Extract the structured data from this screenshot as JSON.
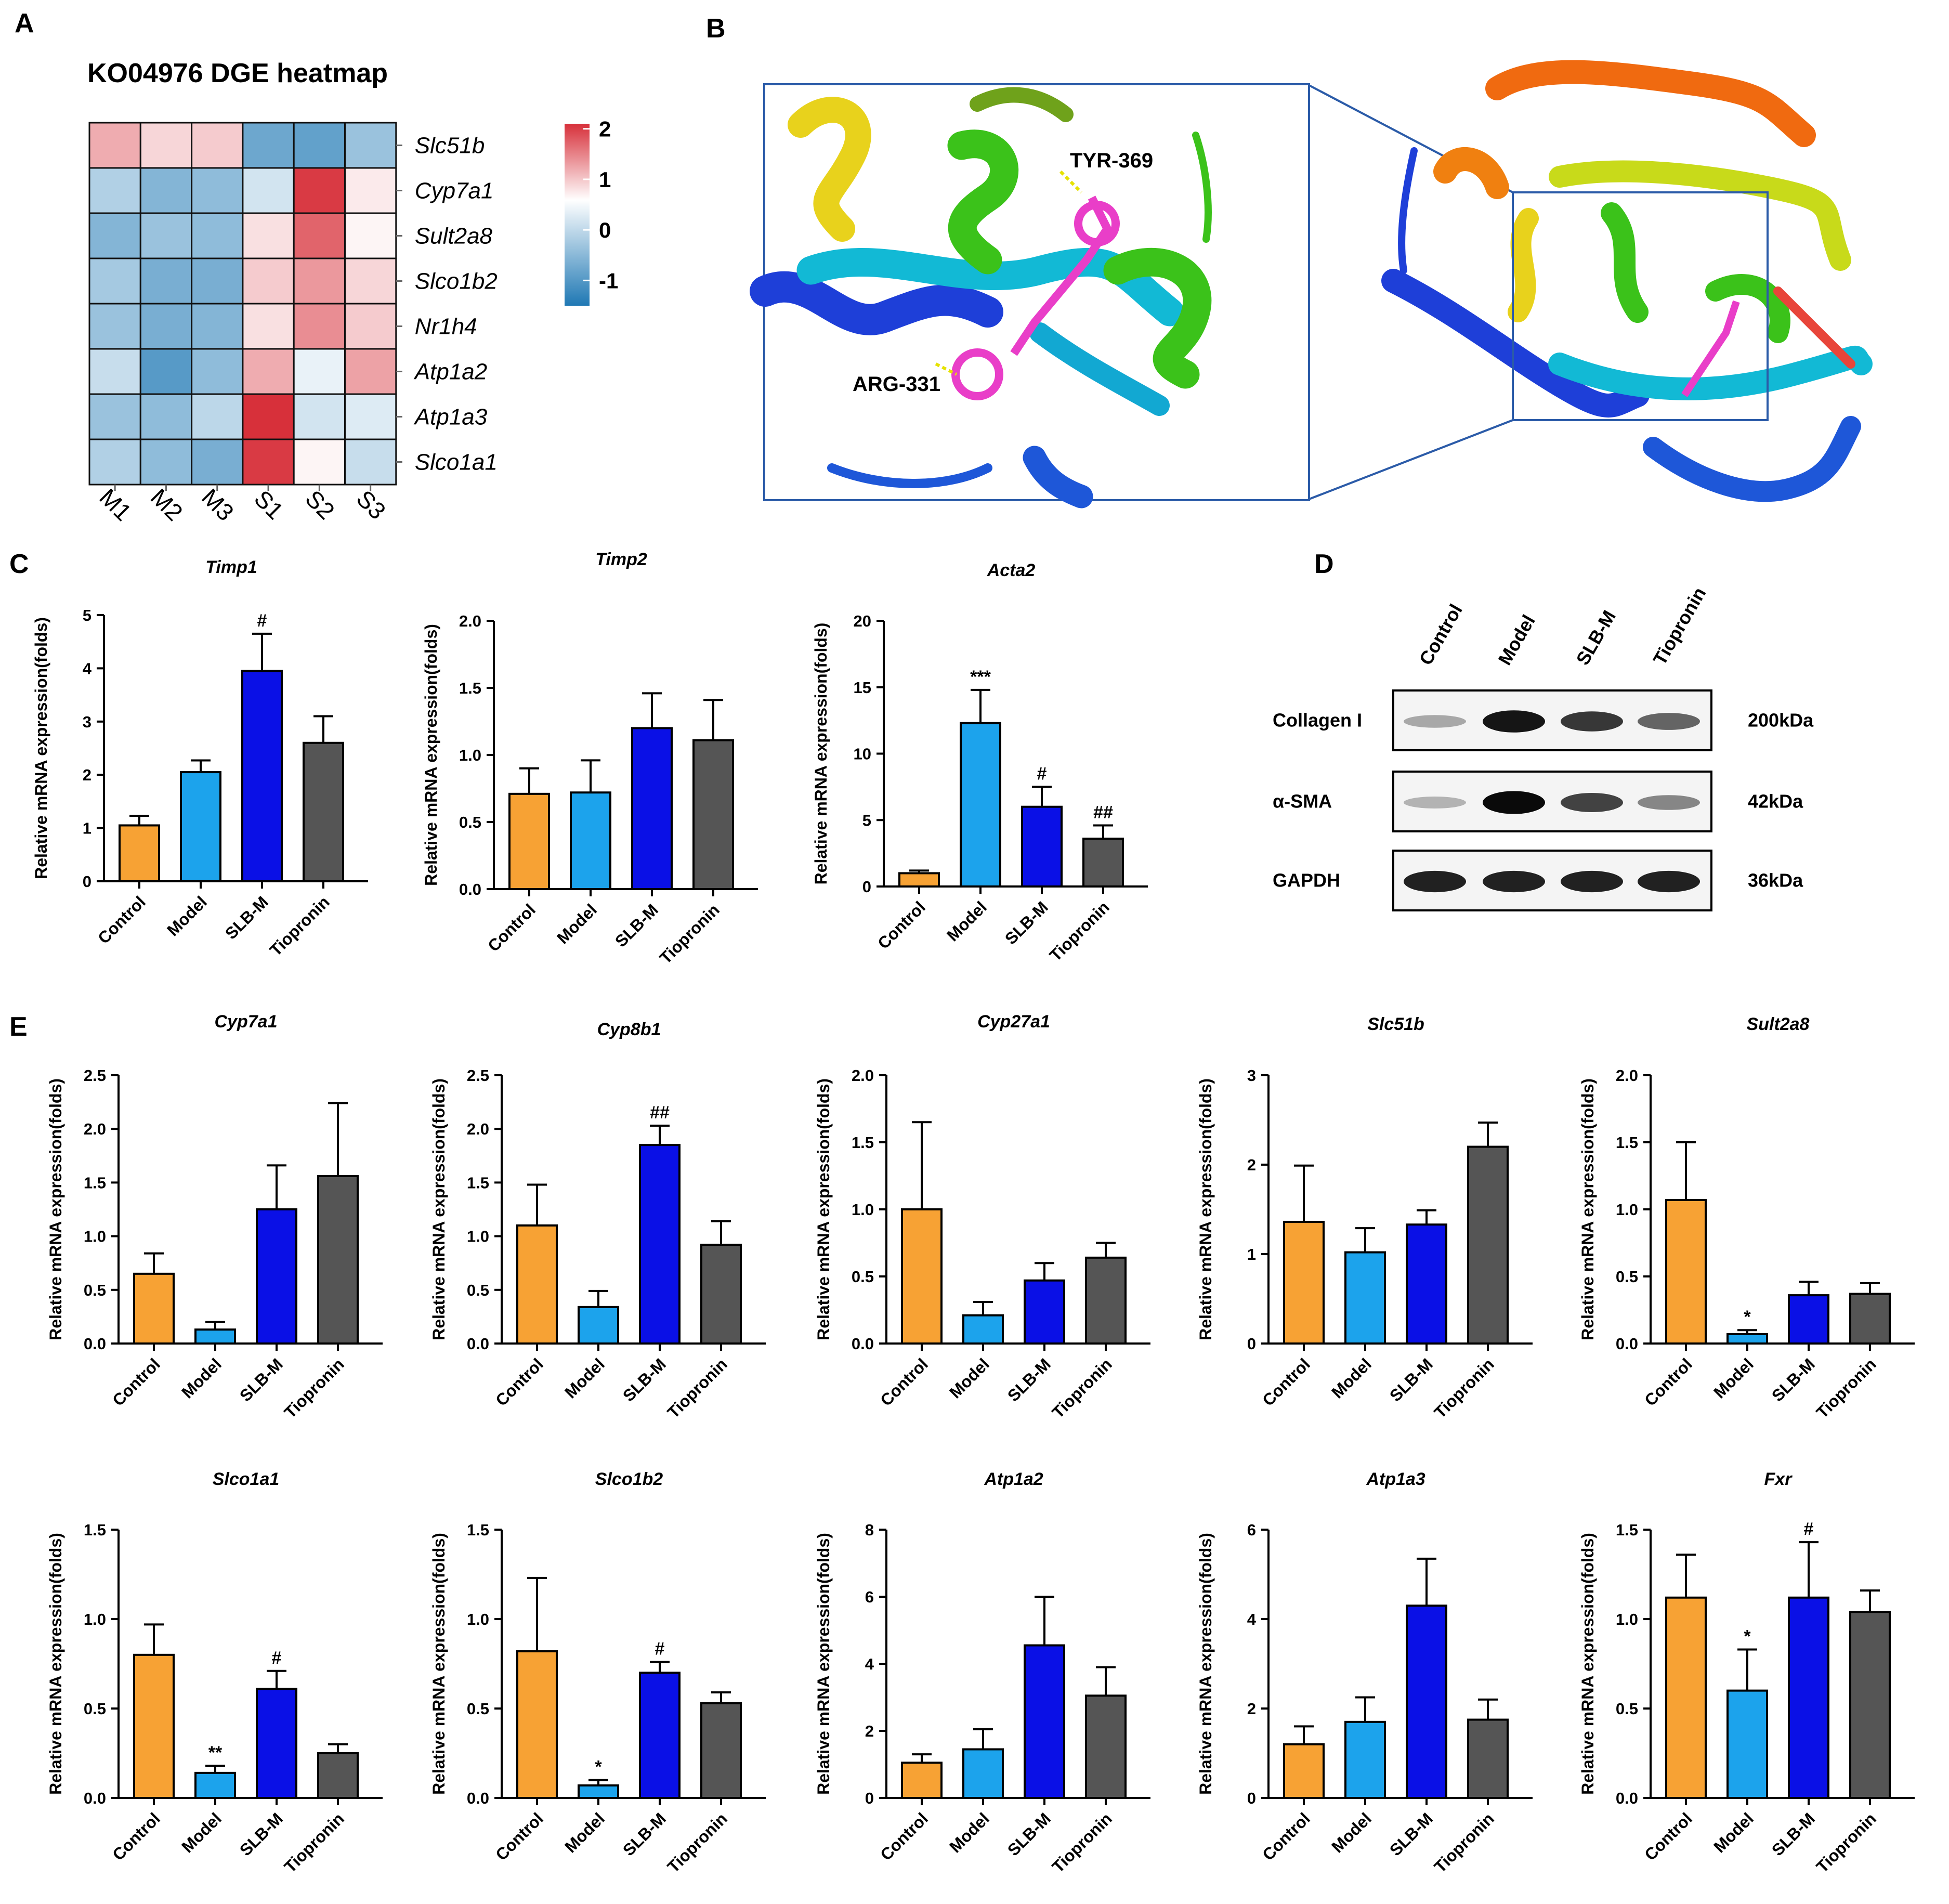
{
  "colors": {
    "Control": "#F7A234",
    "Model": "#1CA3EC",
    "SLB-M": "#0A10E6",
    "Tiopronin": "#555555",
    "heat_high": "#D7303A",
    "heat_mid": "#FFFFFF",
    "heat_low": "#1F78B4"
  },
  "panels": {
    "A": "A",
    "B": "B",
    "C": "C",
    "D": "D",
    "E": "E"
  },
  "heatmap": {
    "title": "KO04976 DGE heatmap",
    "columns": [
      "M1",
      "M2",
      "M3",
      "S1",
      "S2",
      "S3"
    ],
    "rows": [
      "Slc51b",
      "Cyp7a1",
      "Sult2a8",
      "Slco1b2",
      "Nr1h4",
      "Atp1a2",
      "Atp1a3",
      "Slco1a1"
    ],
    "values": [
      [
        0.8,
        0.4,
        0.5,
        -1.3,
        -1.4,
        -0.9
      ],
      [
        -0.7,
        -1.1,
        -1.0,
        -0.4,
        1.9,
        0.2
      ],
      [
        -1.1,
        -0.9,
        -1.0,
        0.3,
        1.5,
        0.1
      ],
      [
        -0.8,
        -1.2,
        -1.2,
        0.5,
        1.0,
        0.4
      ],
      [
        -0.9,
        -1.2,
        -1.1,
        0.3,
        1.1,
        0.5
      ],
      [
        -0.5,
        -1.5,
        -1.0,
        0.8,
        -0.2,
        0.9
      ],
      [
        -0.9,
        -1.0,
        -0.6,
        2.0,
        -0.4,
        -0.3
      ],
      [
        -0.7,
        -1.0,
        -1.2,
        1.9,
        0.1,
        -0.5
      ]
    ],
    "legend_ticks": [
      "2",
      "1",
      "0",
      "-1"
    ],
    "legend_range": [
      -1.5,
      2.1
    ]
  },
  "docking": {
    "residue_1": "TYR-369",
    "residue_2": "ARG-331"
  },
  "western_blot": {
    "lanes": [
      "Control",
      "Model",
      "SLB-M",
      "Tiopronin"
    ],
    "rows": [
      {
        "protein": "Collagen I",
        "size": "200kDa",
        "intensities": [
          0.3,
          0.95,
          0.8,
          0.6
        ]
      },
      {
        "protein": "α-SMA",
        "size": "42kDa",
        "intensities": [
          0.25,
          1.0,
          0.75,
          0.45
        ]
      },
      {
        "protein": "GAPDH",
        "size": "36kDa",
        "intensities": [
          0.9,
          0.9,
          0.9,
          0.9
        ]
      }
    ]
  },
  "chart_data": [
    {
      "type": "bar",
      "title": "Timp1",
      "categories": [
        "Control",
        "Model",
        "SLB-M",
        "Tiopronin"
      ],
      "values": [
        1.05,
        2.05,
        3.95,
        2.6
      ],
      "errors": [
        0.18,
        0.22,
        0.7,
        0.5
      ],
      "significance": [
        "",
        "",
        "#",
        ""
      ],
      "ylim": [
        0,
        5
      ],
      "yticks": [
        "0",
        "1",
        "2",
        "3",
        "4",
        "5"
      ],
      "ylabel": "Relative mRNA expression(folds)"
    },
    {
      "type": "bar",
      "title": "Timp2",
      "categories": [
        "Control",
        "Model",
        "SLB-M",
        "Tiopronin"
      ],
      "values": [
        0.71,
        0.72,
        1.2,
        1.11
      ],
      "errors": [
        0.19,
        0.24,
        0.26,
        0.3
      ],
      "significance": [
        "",
        "",
        "",
        ""
      ],
      "ylim": [
        0,
        2
      ],
      "yticks": [
        "0.0",
        "0.5",
        "1.0",
        "1.5",
        "2.0"
      ],
      "ylabel": "Relative mRNA expression(folds)"
    },
    {
      "type": "bar",
      "title": "Acta2",
      "categories": [
        "Control",
        "Model",
        "SLB-M",
        "Tiopronin"
      ],
      "values": [
        1.0,
        12.3,
        6.0,
        3.6
      ],
      "errors": [
        0.2,
        2.5,
        1.5,
        1.0
      ],
      "significance": [
        "",
        "***",
        "#",
        "##"
      ],
      "ylim": [
        0,
        20
      ],
      "yticks": [
        "0",
        "5",
        "10",
        "15",
        "20"
      ],
      "ylabel": "Relative mRNA expression(folds)"
    },
    {
      "type": "bar",
      "title": "Cyp7a1",
      "categories": [
        "Control",
        "Model",
        "SLB-M",
        "Tiopronin"
      ],
      "values": [
        0.65,
        0.13,
        1.25,
        1.56
      ],
      "errors": [
        0.19,
        0.07,
        0.41,
        0.68
      ],
      "significance": [
        "",
        "",
        "",
        ""
      ],
      "ylim": [
        0,
        2.5
      ],
      "yticks": [
        "0.0",
        "0.5",
        "1.0",
        "1.5",
        "2.0",
        "2.5"
      ],
      "ylabel": "Relative mRNA expression(folds)"
    },
    {
      "type": "bar",
      "title": "Cyp8b1",
      "categories": [
        "Control",
        "Model",
        "SLB-M",
        "Tiopronin"
      ],
      "values": [
        1.1,
        0.34,
        1.85,
        0.92
      ],
      "errors": [
        0.38,
        0.15,
        0.18,
        0.22
      ],
      "significance": [
        "",
        "",
        "##",
        ""
      ],
      "ylim": [
        0,
        2.5
      ],
      "yticks": [
        "0.0",
        "0.5",
        "1.0",
        "1.5",
        "2.0",
        "2.5"
      ],
      "ylabel": "Relative mRNA expression(folds)"
    },
    {
      "type": "bar",
      "title": "Cyp27a1",
      "categories": [
        "Control",
        "Model",
        "SLB-M",
        "Tiopronin"
      ],
      "values": [
        1.0,
        0.21,
        0.47,
        0.64
      ],
      "errors": [
        0.65,
        0.1,
        0.13,
        0.11
      ],
      "significance": [
        "",
        "",
        "",
        ""
      ],
      "ylim": [
        0,
        2
      ],
      "yticks": [
        "0.0",
        "0.5",
        "1.0",
        "1.5",
        "2.0"
      ],
      "ylabel": "Relative mRNA expression(folds)"
    },
    {
      "type": "bar",
      "title": "Slc51b",
      "categories": [
        "Control",
        "Model",
        "SLB-M",
        "Tiopronin"
      ],
      "values": [
        1.36,
        1.02,
        1.33,
        2.2
      ],
      "errors": [
        0.63,
        0.27,
        0.16,
        0.27
      ],
      "significance": [
        "",
        "",
        "",
        ""
      ],
      "ylim": [
        0,
        3
      ],
      "yticks": [
        "0",
        "1",
        "2",
        "3"
      ],
      "ylabel": "Relative mRNA expression(folds)"
    },
    {
      "type": "bar",
      "title": "Sult2a8",
      "categories": [
        "Control",
        "Model",
        "SLB-M",
        "Tiopronin"
      ],
      "values": [
        1.07,
        0.07,
        0.36,
        0.37
      ],
      "errors": [
        0.43,
        0.03,
        0.1,
        0.08
      ],
      "significance": [
        "",
        "*",
        "",
        ""
      ],
      "ylim": [
        0,
        2
      ],
      "yticks": [
        "0.0",
        "0.5",
        "1.0",
        "1.5",
        "2.0"
      ],
      "ylabel": "Relative mRNA expression(folds)"
    },
    {
      "type": "bar",
      "title": "Slco1a1",
      "categories": [
        "Control",
        "Model",
        "SLB-M",
        "Tiopronin"
      ],
      "values": [
        0.8,
        0.14,
        0.61,
        0.25
      ],
      "errors": [
        0.17,
        0.04,
        0.1,
        0.05
      ],
      "significance": [
        "",
        "**",
        "#",
        ""
      ],
      "ylim": [
        0,
        1.5
      ],
      "yticks": [
        "0.0",
        "0.5",
        "1.0",
        "1.5"
      ],
      "ylabel": "Relative mRNA expression(folds)"
    },
    {
      "type": "bar",
      "title": "Slco1b2",
      "categories": [
        "Control",
        "Model",
        "SLB-M",
        "Tiopronin"
      ],
      "values": [
        0.82,
        0.07,
        0.7,
        0.53
      ],
      "errors": [
        0.41,
        0.03,
        0.06,
        0.06
      ],
      "significance": [
        "",
        "*",
        "#",
        ""
      ],
      "ylim": [
        0,
        1.5
      ],
      "yticks": [
        "0.0",
        "0.5",
        "1.0",
        "1.5"
      ],
      "ylabel": "Relative mRNA expression(folds)"
    },
    {
      "type": "bar",
      "title": "Atp1a2",
      "categories": [
        "Control",
        "Model",
        "SLB-M",
        "Tiopronin"
      ],
      "values": [
        1.05,
        1.45,
        4.55,
        3.05
      ],
      "errors": [
        0.25,
        0.6,
        1.45,
        0.85
      ],
      "significance": [
        "",
        "",
        "",
        ""
      ],
      "ylim": [
        0,
        8
      ],
      "yticks": [
        "0",
        "2",
        "4",
        "6",
        "8"
      ],
      "ylabel": "Relative mRNA expression(folds)"
    },
    {
      "type": "bar",
      "title": "Atp1a3",
      "categories": [
        "Control",
        "Model",
        "SLB-M",
        "Tiopronin"
      ],
      "values": [
        1.2,
        1.7,
        4.3,
        1.75
      ],
      "errors": [
        0.4,
        0.55,
        1.05,
        0.45
      ],
      "significance": [
        "",
        "",
        "",
        ""
      ],
      "ylim": [
        0,
        6
      ],
      "yticks": [
        "0",
        "2",
        "4",
        "6"
      ],
      "ylabel": "Relative mRNA expression(folds)"
    },
    {
      "type": "bar",
      "title": "Fxr",
      "categories": [
        "Control",
        "Model",
        "SLB-M",
        "Tiopronin"
      ],
      "values": [
        1.12,
        0.6,
        1.12,
        1.04
      ],
      "errors": [
        0.24,
        0.23,
        0.31,
        0.12
      ],
      "significance": [
        "",
        "*",
        "#",
        ""
      ],
      "ylim": [
        0,
        1.5
      ],
      "yticks": [
        "0.0",
        "0.5",
        "1.0",
        "1.5"
      ],
      "ylabel": "Relative mRNA expression(folds)"
    }
  ]
}
